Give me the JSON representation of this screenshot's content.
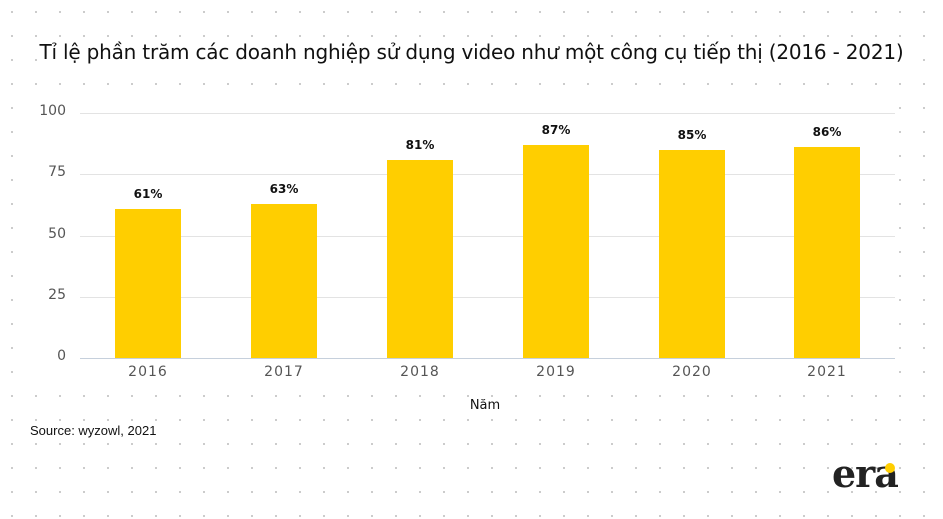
{
  "chart_data": {
    "type": "bar",
    "title": "Tỉ lệ phần trăm các doanh nghiệp sử dụng video như một công cụ tiếp thị (2016 - 2021)",
    "categories": [
      "2016",
      "2017",
      "2018",
      "2019",
      "2020",
      "2021"
    ],
    "values": [
      61,
      63,
      81,
      87,
      85,
      86
    ],
    "value_labels": [
      "61%",
      "63%",
      "81%",
      "87%",
      "85%",
      "86%"
    ],
    "xlabel": "Năm",
    "ylabel": "",
    "ylim": [
      0,
      100
    ],
    "yticks": [
      "0",
      "25",
      "50",
      "75",
      "100"
    ],
    "grid": true,
    "legend": "none",
    "bar_color": "#ffce00"
  },
  "source": "Source: wyzowl, 2021",
  "logo": {
    "text": "era",
    "accent": "#ffce00"
  }
}
